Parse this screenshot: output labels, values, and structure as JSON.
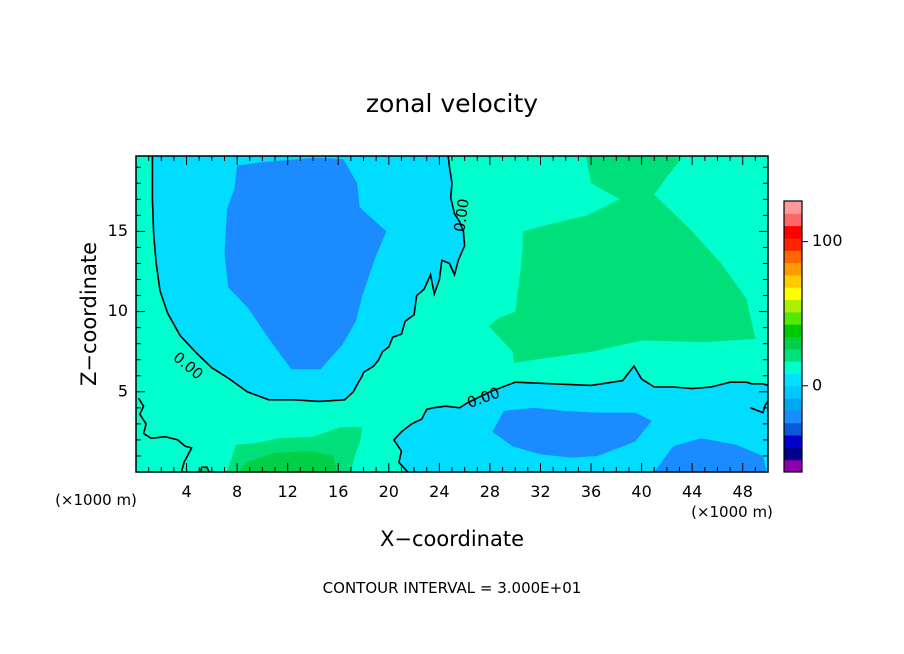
{
  "chart_data": {
    "type": "contour",
    "title": "zonal velocity",
    "xlabel": "X−coordinate",
    "ylabel": "Z−coordinate",
    "x_unit_left": "(×1000 m)",
    "x_unit_right": "(×1000 m)",
    "footer": "CONTOUR INTERVAL = 3.000E+01",
    "xlim": [
      0,
      50
    ],
    "ylim": [
      0,
      19.7
    ],
    "x_ticks": [
      {
        "value": 4,
        "label": "4"
      },
      {
        "value": 8,
        "label": "8"
      },
      {
        "value": 12,
        "label": "12"
      },
      {
        "value": 16,
        "label": "16"
      },
      {
        "value": 20,
        "label": "20"
      },
      {
        "value": 24,
        "label": "24"
      },
      {
        "value": 28,
        "label": "28"
      },
      {
        "value": 32,
        "label": "32"
      },
      {
        "value": 36,
        "label": "36"
      },
      {
        "value": 40,
        "label": "40"
      },
      {
        "value": 44,
        "label": "44"
      },
      {
        "value": 48,
        "label": "48"
      }
    ],
    "y_ticks": [
      {
        "value": 5,
        "label": "5"
      },
      {
        "value": 10,
        "label": "10"
      },
      {
        "value": 15,
        "label": "15"
      }
    ],
    "contour_labels": [
      {
        "text": "0.00",
        "x": 4.1,
        "y": 6.6,
        "angle": 40
      },
      {
        "text": "0.00",
        "x": 25.8,
        "y": 16.0,
        "angle": -82
      },
      {
        "text": "0.00",
        "x": 27.5,
        "y": 4.6,
        "angle": -20
      }
    ],
    "regions": [
      {
        "name": "negative-west",
        "color": "#1a8cff",
        "points": [
          [
            7.8,
            17.7
          ],
          [
            8.0,
            19.1
          ],
          [
            9.8,
            19.3
          ],
          [
            14.3,
            19.6
          ],
          [
            16.4,
            19.5
          ],
          [
            17.5,
            18.0
          ],
          [
            17.7,
            16.5
          ],
          [
            19.8,
            15.0
          ],
          [
            18.9,
            13.3
          ],
          [
            17.9,
            11.0
          ],
          [
            17.4,
            9.4
          ],
          [
            16.3,
            7.9
          ],
          [
            14.6,
            6.4
          ],
          [
            12.3,
            6.4
          ],
          [
            10.6,
            8.2
          ],
          [
            8.9,
            10.2
          ],
          [
            7.3,
            11.5
          ],
          [
            7.0,
            13.6
          ],
          [
            7.2,
            16.4
          ]
        ]
      },
      {
        "name": "negative-east-low",
        "color": "#1a8cff",
        "points": [
          [
            28.2,
            2.5
          ],
          [
            29.1,
            3.8
          ],
          [
            31.5,
            4.0
          ],
          [
            34.0,
            3.8
          ],
          [
            36.5,
            3.7
          ],
          [
            39.5,
            3.7
          ],
          [
            40.8,
            3.2
          ],
          [
            39.5,
            1.9
          ],
          [
            38.2,
            1.5
          ],
          [
            36.5,
            1.0
          ],
          [
            34.5,
            0.9
          ],
          [
            32.0,
            1.1
          ],
          [
            29.8,
            1.6
          ]
        ]
      },
      {
        "name": "negative-east-corner",
        "color": "#1a8cff",
        "points": [
          [
            41.0,
            0.0
          ],
          [
            42.5,
            1.6
          ],
          [
            44.7,
            2.1
          ],
          [
            47.5,
            1.7
          ],
          [
            49.6,
            1.0
          ],
          [
            49.9,
            0.0
          ]
        ]
      },
      {
        "name": "positive-northeast",
        "color": "#00e07a",
        "points": [
          [
            27.9,
            9.1
          ],
          [
            28.7,
            9.6
          ],
          [
            30.0,
            10.0
          ],
          [
            30.4,
            12.5
          ],
          [
            30.6,
            14.0
          ],
          [
            30.6,
            15.0
          ],
          [
            33.0,
            15.5
          ],
          [
            35.7,
            16.0
          ],
          [
            38.5,
            17.1
          ],
          [
            39.4,
            16.5
          ],
          [
            36.0,
            18.0
          ],
          [
            35.6,
            19.7
          ],
          [
            43.2,
            19.6
          ],
          [
            42.0,
            18.4
          ],
          [
            41.0,
            17.3
          ],
          [
            44.0,
            15.0
          ],
          [
            46.3,
            13.0
          ],
          [
            48.3,
            10.8
          ],
          [
            49.0,
            8.3
          ],
          [
            45.0,
            8.1
          ],
          [
            40.0,
            8.2
          ],
          [
            36.0,
            7.5
          ],
          [
            31.5,
            7.0
          ],
          [
            29.9,
            6.8
          ],
          [
            29.8,
            7.5
          ],
          [
            28.5,
            8.6
          ]
        ]
      },
      {
        "name": "positive-low-west",
        "color": "#00e07a",
        "points": [
          [
            7.2,
            0.0
          ],
          [
            7.9,
            1.7
          ],
          [
            9.4,
            1.8
          ],
          [
            11.3,
            2.1
          ],
          [
            14.0,
            2.2
          ],
          [
            16.2,
            2.8
          ],
          [
            17.9,
            2.8
          ],
          [
            17.7,
            1.8
          ],
          [
            17.3,
            1.0
          ],
          [
            17.0,
            0.0
          ]
        ]
      },
      {
        "name": "positive-low-west-core",
        "color": "#00d048",
        "points": [
          [
            8.1,
            0.0
          ],
          [
            8.7,
            0.6
          ],
          [
            11.0,
            1.2
          ],
          [
            13.9,
            1.3
          ],
          [
            15.6,
            1.0
          ],
          [
            15.9,
            0.0
          ]
        ]
      },
      {
        "name": "positive-low-dot",
        "color": "#00e07a",
        "points": [
          [
            5.0,
            0.0
          ],
          [
            5.2,
            0.2
          ],
          [
            5.6,
            0.3
          ],
          [
            5.8,
            0.0
          ]
        ]
      }
    ],
    "zero_contours": [
      [
        [
          1.3,
          19.7
        ],
        [
          1.3,
          17.0
        ],
        [
          1.4,
          14.8
        ],
        [
          1.6,
          13.0
        ],
        [
          1.9,
          11.3
        ],
        [
          2.5,
          9.9
        ],
        [
          3.5,
          8.5
        ],
        [
          4.8,
          7.4
        ],
        [
          6.0,
          6.5
        ],
        [
          7.4,
          5.8
        ],
        [
          8.8,
          5.0
        ],
        [
          10.5,
          4.5
        ],
        [
          12.5,
          4.5
        ],
        [
          14.5,
          4.4
        ],
        [
          16.5,
          4.5
        ],
        [
          17.2,
          5.0
        ],
        [
          17.6,
          5.6
        ],
        [
          17.9,
          6.0
        ],
        [
          18.0,
          6.2
        ],
        [
          18.8,
          6.6
        ],
        [
          19.2,
          7.0
        ],
        [
          19.5,
          7.5
        ],
        [
          20.0,
          7.8
        ],
        [
          20.3,
          8.4
        ],
        [
          21.0,
          8.6
        ],
        [
          21.3,
          9.4
        ],
        [
          22.0,
          9.8
        ],
        [
          22.2,
          11.0
        ],
        [
          22.8,
          11.4
        ],
        [
          23.3,
          12.3
        ],
        [
          23.6,
          11.1
        ],
        [
          24.0,
          12.0
        ],
        [
          24.2,
          13.2
        ],
        [
          24.8,
          13.0
        ],
        [
          25.2,
          12.3
        ],
        [
          25.5,
          13.2
        ],
        [
          26.0,
          14.1
        ],
        [
          25.9,
          15.0
        ],
        [
          25.6,
          15.6
        ],
        [
          25.2,
          16.1
        ],
        [
          24.9,
          17.1
        ],
        [
          25.0,
          18.0
        ],
        [
          24.8,
          19.0
        ],
        [
          24.7,
          19.7
        ]
      ],
      [
        [
          0.2,
          4.6
        ],
        [
          0.6,
          4.1
        ],
        [
          0.3,
          3.6
        ],
        [
          0.8,
          3.0
        ],
        [
          0.6,
          2.4
        ],
        [
          1.2,
          2.1
        ],
        [
          2.3,
          2.2
        ],
        [
          3.3,
          2.0
        ],
        [
          3.9,
          1.6
        ],
        [
          4.4,
          1.5
        ],
        [
          4.2,
          1.2
        ],
        [
          3.8,
          0.6
        ],
        [
          3.6,
          0.0
        ]
      ],
      [
        [
          21.5,
          0.0
        ],
        [
          20.8,
          0.6
        ],
        [
          21.0,
          1.3
        ],
        [
          20.4,
          2.0
        ],
        [
          21.0,
          2.5
        ],
        [
          21.8,
          3.0
        ],
        [
          22.6,
          3.3
        ],
        [
          23.0,
          3.9
        ],
        [
          23.5,
          4.0
        ],
        [
          24.5,
          4.1
        ],
        [
          25.6,
          4.0
        ],
        [
          26.2,
          4.3
        ],
        [
          28.0,
          5.0
        ],
        [
          30.0,
          5.6
        ],
        [
          33.0,
          5.5
        ],
        [
          36.0,
          5.4
        ],
        [
          38.5,
          5.7
        ],
        [
          39.4,
          6.6
        ],
        [
          40.0,
          5.8
        ],
        [
          41.0,
          5.3
        ],
        [
          42.5,
          5.3
        ],
        [
          44.0,
          5.2
        ],
        [
          45.5,
          5.3
        ],
        [
          47.0,
          5.6
        ],
        [
          48.3,
          5.6
        ],
        [
          48.7,
          5.5
        ],
        [
          49.6,
          5.5
        ],
        [
          50.0,
          5.4
        ]
      ],
      [
        [
          48.6,
          4.0
        ],
        [
          49.6,
          3.7
        ],
        [
          49.8,
          4.2
        ],
        [
          50.0,
          4.4
        ]
      ],
      [
        [
          5.1,
          0.0
        ],
        [
          5.2,
          0.3
        ],
        [
          5.6,
          0.3
        ],
        [
          5.8,
          0.0
        ]
      ]
    ],
    "colorbar": {
      "colors": [
        "#8b00a8",
        "#00008b",
        "#0000cd",
        "#0a5ad8",
        "#1a8cff",
        "#00a8f0",
        "#00c8ff",
        "#00e0ff",
        "#00ffcc",
        "#00e07a",
        "#00d048",
        "#00c800",
        "#55e800",
        "#aaf000",
        "#ffff00",
        "#ffcc00",
        "#ff9900",
        "#ff6600",
        "#ff2200",
        "#ff0000",
        "#ff6666",
        "#ff9999"
      ],
      "tick_labels": [
        {
          "level": 7.0,
          "label": "0"
        },
        {
          "level": 18.7,
          "label": "100"
        }
      ]
    }
  },
  "colors": {
    "background_field": "#00ffcc",
    "mid_field": "#00ddff"
  }
}
